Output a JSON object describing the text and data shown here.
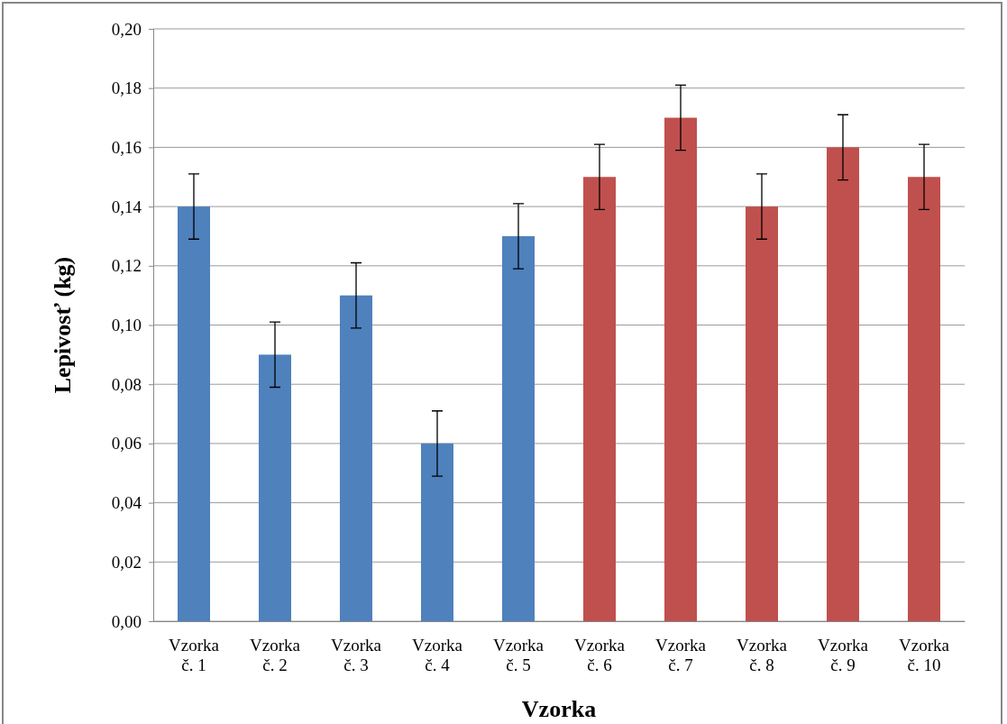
{
  "chart_data": {
    "type": "bar",
    "xlabel": "Vzorka",
    "ylabel": "Lepivosť (kg)",
    "categories": [
      "Vzorka č. 1",
      "Vzorka č. 2",
      "Vzorka č. 3",
      "Vzorka č. 4",
      "Vzorka č. 5",
      "Vzorka č. 6",
      "Vzorka č. 7",
      "Vzorka č. 8",
      "Vzorka č. 9",
      "Vzorka č. 10"
    ],
    "values": [
      0.14,
      0.09,
      0.11,
      0.06,
      0.13,
      0.15,
      0.17,
      0.14,
      0.16,
      0.15
    ],
    "colors": [
      "#4f81bd",
      "#4f81bd",
      "#4f81bd",
      "#4f81bd",
      "#4f81bd",
      "#c0504d",
      "#c0504d",
      "#c0504d",
      "#c0504d",
      "#c0504d"
    ],
    "errors": [
      0.011,
      0.011,
      0.011,
      0.011,
      0.011,
      0.011,
      0.011,
      0.011,
      0.011,
      0.011
    ],
    "ylim": [
      0,
      0.2
    ],
    "yticks": [
      {
        "value": 0,
        "label": "0,00"
      },
      {
        "value": 0.02,
        "label": "0,02"
      },
      {
        "value": 0.04,
        "label": "0,04"
      },
      {
        "value": 0.06,
        "label": "0,06"
      },
      {
        "value": 0.08,
        "label": "0,08"
      },
      {
        "value": 0.1,
        "label": "0,10"
      },
      {
        "value": 0.12,
        "label": "0,12"
      },
      {
        "value": 0.14,
        "label": "0,14"
      },
      {
        "value": 0.16,
        "label": "0,16"
      },
      {
        "value": 0.18,
        "label": "0,18"
      },
      {
        "value": 0.2,
        "label": "0,20"
      }
    ],
    "grid": "y"
  }
}
